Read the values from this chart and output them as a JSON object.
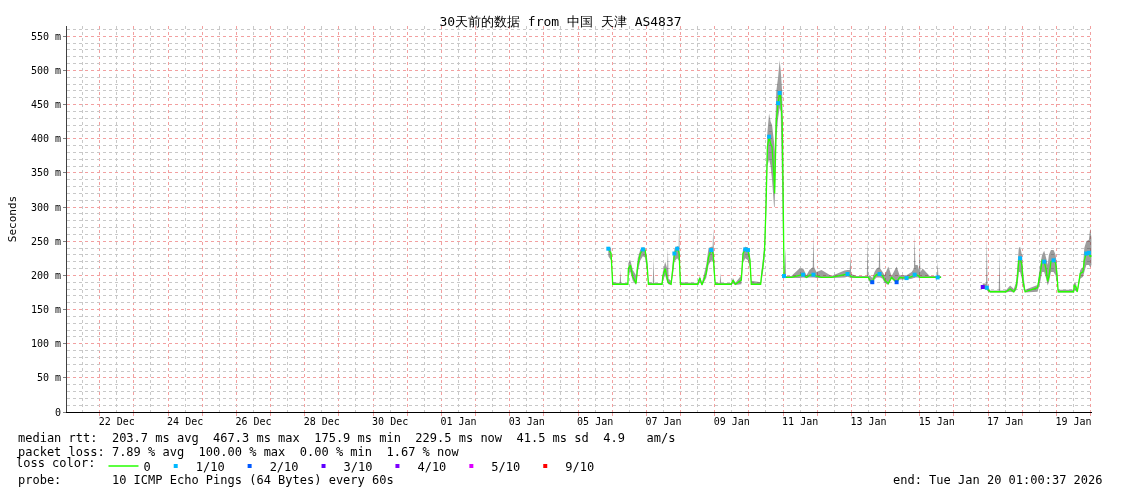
{
  "chart_data": {
    "type": "line",
    "title": "30天前的数据 from 中国 天津 AS4837",
    "ylabel": "Seconds",
    "legend_title": "loss color:",
    "legend": "bottom",
    "grid": true,
    "line_style": "solid",
    "xlim": [
      "2025-12-21T01:00",
      "2026-01-20T01:00"
    ],
    "ylim": [
      0,
      565
    ],
    "xticks": [
      {
        "value": "2025-12-21T12:00",
        "label": null
      },
      {
        "value": "2025-12-22T00:00",
        "label": null
      },
      {
        "value": "2025-12-22T12:00",
        "label": "22 Dec"
      },
      {
        "value": "2025-12-23T00:00",
        "label": null
      },
      {
        "value": "2025-12-23T12:00",
        "label": null
      },
      {
        "value": "2025-12-24T00:00",
        "label": null
      },
      {
        "value": "2025-12-24T12:00",
        "label": "24 Dec"
      },
      {
        "value": "2025-12-25T00:00",
        "label": null
      },
      {
        "value": "2025-12-25T12:00",
        "label": null
      },
      {
        "value": "2025-12-26T00:00",
        "label": null
      },
      {
        "value": "2025-12-26T12:00",
        "label": "26 Dec"
      },
      {
        "value": "2025-12-27T00:00",
        "label": null
      },
      {
        "value": "2025-12-27T12:00",
        "label": null
      },
      {
        "value": "2025-12-28T00:00",
        "label": null
      },
      {
        "value": "2025-12-28T12:00",
        "label": "28 Dec"
      },
      {
        "value": "2025-12-29T00:00",
        "label": null
      },
      {
        "value": "2025-12-29T12:00",
        "label": null
      },
      {
        "value": "2025-12-30T00:00",
        "label": null
      },
      {
        "value": "2025-12-30T12:00",
        "label": "30 Dec"
      },
      {
        "value": "2025-12-31T00:00",
        "label": null
      },
      {
        "value": "2025-12-31T12:00",
        "label": null
      },
      {
        "value": "2026-01-01T00:00",
        "label": null
      },
      {
        "value": "2026-01-01T12:00",
        "label": "01 Jan"
      },
      {
        "value": "2026-01-02T00:00",
        "label": null
      },
      {
        "value": "2026-01-02T12:00",
        "label": null
      },
      {
        "value": "2026-01-03T00:00",
        "label": null
      },
      {
        "value": "2026-01-03T12:00",
        "label": "03 Jan"
      },
      {
        "value": "2026-01-04T00:00",
        "label": null
      },
      {
        "value": "2026-01-04T12:00",
        "label": null
      },
      {
        "value": "2026-01-05T00:00",
        "label": null
      },
      {
        "value": "2026-01-05T12:00",
        "label": "05 Jan"
      },
      {
        "value": "2026-01-06T00:00",
        "label": null
      },
      {
        "value": "2026-01-06T12:00",
        "label": null
      },
      {
        "value": "2026-01-07T00:00",
        "label": null
      },
      {
        "value": "2026-01-07T12:00",
        "label": "07 Jan"
      },
      {
        "value": "2026-01-08T00:00",
        "label": null
      },
      {
        "value": "2026-01-08T12:00",
        "label": null
      },
      {
        "value": "2026-01-09T00:00",
        "label": null
      },
      {
        "value": "2026-01-09T12:00",
        "label": "09 Jan"
      },
      {
        "value": "2026-01-10T00:00",
        "label": null
      },
      {
        "value": "2026-01-10T12:00",
        "label": null
      },
      {
        "value": "2026-01-11T00:00",
        "label": null
      },
      {
        "value": "2026-01-11T12:00",
        "label": "11 Jan"
      },
      {
        "value": "2026-01-12T00:00",
        "label": null
      },
      {
        "value": "2026-01-12T12:00",
        "label": null
      },
      {
        "value": "2026-01-13T00:00",
        "label": null
      },
      {
        "value": "2026-01-13T12:00",
        "label": "13 Jan"
      },
      {
        "value": "2026-01-14T00:00",
        "label": null
      },
      {
        "value": "2026-01-14T12:00",
        "label": null
      },
      {
        "value": "2026-01-15T00:00",
        "label": null
      },
      {
        "value": "2026-01-15T12:00",
        "label": "15 Jan"
      },
      {
        "value": "2026-01-16T00:00",
        "label": null
      },
      {
        "value": "2026-01-16T12:00",
        "label": null
      },
      {
        "value": "2026-01-17T00:00",
        "label": null
      },
      {
        "value": "2026-01-17T12:00",
        "label": "17 Jan"
      },
      {
        "value": "2026-01-18T00:00",
        "label": null
      },
      {
        "value": "2026-01-18T12:00",
        "label": null
      },
      {
        "value": "2026-01-19T00:00",
        "label": null
      },
      {
        "value": "2026-01-19T12:00",
        "label": "19 Jan"
      },
      {
        "value": "2026-01-20T00:00",
        "label": null
      }
    ],
    "yticks": [
      0,
      {
        "value": 10,
        "label": null
      },
      {
        "value": 20,
        "label": null
      },
      {
        "value": 30,
        "label": null
      },
      {
        "value": 40,
        "label": null
      },
      {
        "value": 50,
        "label": "50 m"
      },
      {
        "value": 60,
        "label": null
      },
      {
        "value": 70,
        "label": null
      },
      {
        "value": 80,
        "label": null
      },
      {
        "value": 90,
        "label": null
      },
      {
        "value": 100,
        "label": "100 m"
      },
      {
        "value": 110,
        "label": null
      },
      {
        "value": 120,
        "label": null
      },
      {
        "value": 130,
        "label": null
      },
      {
        "value": 140,
        "label": null
      },
      {
        "value": 150,
        "label": "150 m"
      },
      {
        "value": 160,
        "label": null
      },
      {
        "value": 170,
        "label": null
      },
      {
        "value": 180,
        "label": null
      },
      {
        "value": 190,
        "label": null
      },
      {
        "value": 200,
        "label": "200 m"
      },
      {
        "value": 210,
        "label": null
      },
      {
        "value": 220,
        "label": null
      },
      {
        "value": 230,
        "label": null
      },
      {
        "value": 240,
        "label": null
      },
      {
        "value": 250,
        "label": "250 m"
      },
      {
        "value": 260,
        "label": null
      },
      {
        "value": 270,
        "label": null
      },
      {
        "value": 280,
        "label": null
      },
      {
        "value": 290,
        "label": null
      },
      {
        "value": 300,
        "label": "300 m"
      },
      {
        "value": 310,
        "label": null
      },
      {
        "value": 320,
        "label": null
      },
      {
        "value": 330,
        "label": null
      },
      {
        "value": 340,
        "label": null
      },
      {
        "value": 350,
        "label": "350 m"
      },
      {
        "value": 360,
        "label": null
      },
      {
        "value": 370,
        "label": null
      },
      {
        "value": 380,
        "label": null
      },
      {
        "value": 390,
        "label": null
      },
      {
        "value": 400,
        "label": "400 m"
      },
      {
        "value": 410,
        "label": null
      },
      {
        "value": 420,
        "label": null
      },
      {
        "value": 430,
        "label": null
      },
      {
        "value": 440,
        "label": null
      },
      {
        "value": 450,
        "label": "450 m"
      },
      {
        "value": 460,
        "label": null
      },
      {
        "value": 470,
        "label": null
      },
      {
        "value": 480,
        "label": null
      },
      {
        "value": 490,
        "label": null
      },
      {
        "value": 500,
        "label": "500 m"
      },
      {
        "value": 510,
        "label": null
      },
      {
        "value": 520,
        "label": null
      },
      {
        "value": 530,
        "label": null
      },
      {
        "value": 540,
        "label": null
      },
      {
        "value": 550,
        "label": "550 m"
      },
      {
        "value": 560,
        "label": null
      }
    ],
    "annotations": [
      "median rtt:  203.7 ms avg  467.3 ms max  175.9 ms min  229.5 ms now  41.5 ms sd  4.9   am/s",
      "packet loss: 7.89 % avg  100.00 % max  0.00 % min  1.67 % now",
      "probe:       10 ICMP Echo Pings (64 Bytes) every 60s",
      "end: Tue Jan 20 01:00:37 2026"
    ],
    "series": [
      {
        "name": "0",
        "color": "#26ff00",
        "x": [
          "2026-01-05T21:15",
          "2026-01-05T23:10",
          "2026-01-06T00:20",
          "2026-01-06T05:15",
          "2026-01-06T05:45",
          "2026-01-06T06:15",
          "2026-01-06T11:00",
          "2026-01-06T11:20",
          "2026-01-06T12:45",
          "2026-01-06T14:25",
          "2026-01-06T16:45",
          "2026-01-06T17:55",
          "2026-01-06T19:45",
          "2026-01-06T21:30",
          "2026-01-06T23:05",
          "2026-01-07T00:30",
          "2026-01-07T01:25",
          "2026-01-07T04:30",
          "2026-01-07T05:00",
          "2026-01-07T05:30",
          "2026-01-07T11:00",
          "2026-01-07T11:30",
          "2026-01-07T13:10",
          "2026-01-07T14:35",
          "2026-01-07T15:05",
          "2026-01-07T15:35",
          "2026-01-07T17:20",
          "2026-01-07T18:35",
          "2026-01-07T19:40",
          "2026-01-07T21:35",
          "2026-01-07T22:40",
          "2026-01-07T23:00",
          "2026-01-07T23:25",
          "2026-01-07T23:55",
          "2026-01-08T12:10",
          "2026-01-08T12:35",
          "2026-01-08T13:35",
          "2026-01-08T15:00",
          "2026-01-08T18:00",
          "2026-01-08T19:40",
          "2026-01-08T21:30",
          "2026-01-08T22:30",
          "2026-01-08T23:00",
          "2026-01-08T23:30",
          "2026-01-09T00:20",
          "2026-01-09T03:30",
          "2026-01-09T04:00",
          "2026-01-09T04:30",
          "2026-01-09T11:35",
          "2026-01-09T12:50",
          "2026-01-09T14:25",
          "2026-01-09T18:40",
          "2026-01-09T19:50",
          "2026-01-09T21:25",
          "2026-01-09T23:20",
          "2026-01-10T00:45",
          "2026-01-10T01:40",
          "2026-01-10T08:15",
          "2026-01-10T08:45",
          "2026-01-10T09:55",
          "2026-01-10T11:00",
          "2026-01-10T12:00",
          "2026-01-10T13:00",
          "2026-01-10T14:10",
          "2026-01-10T15:15",
          "2026-01-10T16:15",
          "2026-01-10T17:40",
          "2026-01-10T18:05",
          "2026-01-10T19:15",
          "2026-01-10T20:30",
          "2026-01-10T21:35",
          "2026-01-10T22:20",
          "2026-01-10T23:20",
          "2026-01-11T00:00",
          "2026-01-11T00:40",
          "2026-01-11T01:35",
          "2026-01-11T02:05",
          "2026-01-11T05:50",
          "2026-01-11T11:30",
          "2026-01-11T14:05",
          "2026-01-11T16:25",
          "2026-01-11T18:30",
          "2026-01-11T20:50",
          "2026-01-11T21:20",
          "2026-01-11T21:50",
          "2026-01-11T23:25",
          "2026-01-12T03:00",
          "2026-01-12T10:00",
          "2026-01-12T19:10",
          "2026-01-12T21:15",
          "2026-01-12T22:50",
          "2026-01-12T23:20",
          "2026-01-12T23:50",
          "2026-01-13T03:35",
          "2026-01-13T10:50",
          "2026-01-13T11:20",
          "2026-01-13T11:50",
          "2026-01-13T13:00",
          "2026-01-13T14:40",
          "2026-01-13T16:15",
          "2026-01-13T17:40",
          "2026-01-13T19:15",
          "2026-01-13T19:45",
          "2026-01-13T20:15",
          "2026-01-13T21:55",
          "2026-01-13T23:20",
          "2026-01-14T01:55",
          "2026-01-14T04:15",
          "2026-01-14T07:45",
          "2026-01-14T09:50",
          "2026-01-14T14:45",
          "2026-01-14T18:20",
          "2026-01-14T19:55",
          "2026-01-14T20:25",
          "2026-01-14T20:55",
          "2026-01-14T22:30",
          "2026-01-14T23:30",
          "2026-01-15T00:00",
          "2026-01-15T00:30",
          "2026-01-15T02:00",
          "2026-01-15T07:00",
          "2026-01-15T12:05",
          "2026-01-15T12:35",
          "2026-01-15T13:05",
          "2026-01-15T15:00",
          "2026-01-16T06:00",
          "2026-01-16T20:15",
          "2026-01-16T22:35",
          "2026-01-16T23:05",
          "2026-01-16T23:35",
          "2026-01-17T01:25",
          "2026-01-17T07:30",
          "2026-01-17T08:00",
          "2026-01-17T08:30",
          "2026-01-17T12:25",
          "2026-01-17T15:30",
          "2026-01-17T18:05",
          "2026-01-17T19:40",
          "2026-01-17T20:40",
          "2026-01-17T21:35",
          "2026-01-17T22:30",
          "2026-01-17T23:45",
          "2026-01-18T00:25",
          "2026-01-18T02:00",
          "2026-01-18T10:45",
          "2026-01-18T12:35",
          "2026-01-18T14:00",
          "2026-01-18T15:25",
          "2026-01-18T16:50",
          "2026-01-18T17:50",
          "2026-01-18T18:45",
          "2026-01-18T20:10",
          "2026-01-18T22:00",
          "2026-01-18T23:25",
          "2026-01-19T00:20",
          "2026-01-19T01:15",
          "2026-01-19T12:05",
          "2026-01-19T12:30",
          "2026-01-19T13:45",
          "2026-01-19T14:40",
          "2026-01-19T16:45",
          "2026-01-19T18:40",
          "2026-01-19T19:35",
          "2026-01-19T21:00",
          "2026-01-19T22:50",
          "2026-01-19T23:45",
          "2026-01-20T00:35"
        ],
        "values": [
          239,
          232,
          187,
          187,
          187,
          187,
          187,
          210,
          215,
          198,
          188,
          215,
          232,
          238,
          237,
          215,
          187,
          187,
          187,
          187,
          187,
          198,
          210,
          196,
          191,
          189,
          187,
          210,
          232,
          239,
          235,
          232,
          210,
          187,
          187,
          191,
          196,
          186,
          203,
          227,
          237,
          234,
          230,
          210,
          187,
          187,
          187,
          187,
          187,
          193,
          187,
          193,
          232,
          238,
          237,
          222,
          187,
          187,
          198,
          215,
          237,
          300,
          388,
          403,
          393,
          388,
          344,
          320,
          427,
          452,
          467,
          461,
          427,
          325,
          199,
          197,
          197,
          197,
          200,
          201,
          197,
          200,
          201,
          201,
          201,
          199,
          197,
          197,
          201,
          202,
          200,
          199,
          198,
          197,
          197,
          197,
          197,
          193,
          190,
          198,
          201,
          202,
          202,
          201,
          199,
          193,
          188,
          197,
          190,
          197,
          196,
          198,
          200,
          201,
          201,
          200,
          199,
          197,
          197,
          197,
          197,
          197,
          197,
          197,
          197,
          null,
          183,
          183,
          182,
          180,
          176,
          176,
          176,
          176,
          176,
          180,
          176,
          182,
          198,
          222,
          225,
          215,
          193,
          176,
          182,
          203,
          222,
          220,
          208,
          191,
          198,
          220,
          222,
          218,
          203,
          176,
          176,
          186,
          183,
          176,
          203,
          205,
          222,
          232,
          233,
          227,
          229
        ],
        "lower": [
          228,
          222,
          186,
          186,
          186,
          186,
          186,
          204,
          205,
          192,
          186,
          205,
          222,
          228,
          226,
          205,
          186,
          186,
          186,
          186,
          186,
          192,
          200,
          190,
          188,
          187,
          186,
          200,
          220,
          225,
          222,
          220,
          200,
          186,
          186,
          187,
          190,
          185,
          196,
          215,
          222,
          220,
          218,
          200,
          186,
          186,
          186,
          186,
          186,
          188,
          186,
          187,
          218,
          225,
          222,
          210,
          186,
          186,
          190,
          205,
          225,
          280,
          360,
          370,
          360,
          340,
          300,
          300,
          400,
          430,
          445,
          440,
          330,
          250,
          197,
          196,
          196,
          196,
          196,
          197,
          196,
          197,
          197,
          197,
          197,
          196,
          196,
          196,
          197,
          198,
          197,
          196,
          196,
          196,
          196,
          196,
          196,
          189,
          187,
          194,
          197,
          197,
          197,
          197,
          195,
          189,
          186,
          195,
          188,
          194,
          194,
          195,
          196,
          196,
          197,
          197,
          196,
          196,
          196,
          196,
          196,
          196,
          196,
          196,
          196,
          null,
          180,
          180,
          179,
          177,
          175,
          175,
          175,
          175,
          175,
          176,
          175,
          178,
          185,
          205,
          205,
          195,
          185,
          175,
          176,
          190,
          205,
          205,
          195,
          185,
          190,
          205,
          205,
          200,
          190,
          175,
          175,
          178,
          177,
          175,
          195,
          198,
          205,
          215,
          215,
          212,
          215
        ],
        "upper": [
          242,
          240,
          190,
          189,
          208,
          189,
          189,
          218,
          222,
          208,
          200,
          225,
          238,
          241,
          240,
          225,
          190,
          189,
          227,
          189,
          189,
          205,
          220,
          210,
          239,
          195,
          192,
          222,
          238,
          243,
          242,
          276,
          225,
          190,
          189,
          194,
          199,
          189,
          215,
          240,
          242,
          242,
          269,
          225,
          190,
          189,
          203,
          189,
          189,
          196,
          189,
          200,
          238,
          242,
          241,
          230,
          192,
          190,
          205,
          225,
          250,
          330,
          410,
          437,
          425,
          420,
          395,
          380,
          470,
          490,
          515,
          500,
          470,
          400,
          205,
          239,
          199,
          199,
          210,
          210,
          200,
          208,
          212,
          259,
          212,
          205,
          208,
          199,
          207,
          208,
          208,
          231,
          202,
          199,
          199,
          253,
          199,
          200,
          196,
          205,
          210,
          212,
          257,
          210,
          205,
          200,
          213,
          199,
          213,
          200,
          200,
          205,
          210,
          259,
          215,
          215,
          208,
          239,
          205,
          210,
          199,
          199,
          220,
          199,
          199,
          null,
          188,
          188,
          257,
          185,
          178,
          178,
          234,
          178,
          178,
          185,
          180,
          190,
          215,
          240,
          242,
          230,
          210,
          179,
          186,
          215,
          230,
          236,
          225,
          215,
          230,
          237,
          237,
          230,
          215,
          179,
          179,
          190,
          188,
          178,
          208,
          212,
          240,
          250,
          252,
          269,
          255
        ]
      },
      {
        "name": "1/10",
        "color": "#00b8ff",
        "type": "scatter",
        "marker": "square",
        "x": [
          "2026-01-05T21:15",
          "2026-01-06T21:30",
          "2026-01-07T19:40",
          "2026-01-07T21:35",
          "2026-01-08T21:30",
          "2026-01-09T21:25",
          "2026-01-09T23:20",
          "2026-01-10T14:10",
          "2026-01-10T20:30",
          "2026-01-10T21:35",
          "2026-01-11T00:40",
          "2026-01-11T14:05",
          "2026-01-11T21:20",
          "2026-01-12T21:15",
          "2026-01-13T19:45",
          "2026-01-14T14:45",
          "2026-01-14T20:25",
          "2026-01-15T12:35",
          "2026-01-16T23:05",
          "2026-01-17T22:30",
          "2026-01-18T15:25",
          "2026-01-18T22:00",
          "2026-01-19T21:00",
          "2026-01-19T22:50"
        ],
        "values": [
          239,
          238,
          232,
          239,
          237,
          238,
          237,
          403,
          452,
          467,
          199,
          201,
          201,
          202,
          202,
          196,
          201,
          197,
          182,
          225,
          220,
          222,
          232,
          233
        ]
      },
      {
        "name": "2/10",
        "color": "#0059ff",
        "type": "scatter",
        "marker": "square",
        "x": [
          "2026-01-13T14:40",
          "2026-01-14T07:45"
        ],
        "values": [
          190,
          190
        ]
      },
      {
        "name": "3/10",
        "color": "#5e00ff",
        "type": "scatter",
        "marker": "square",
        "x": [
          "2026-01-16T20:15"
        ],
        "values": [
          183
        ]
      },
      {
        "name": "4/10",
        "color": "#7e00ff",
        "type": "scatter",
        "marker": "square"
      },
      {
        "name": "5/10",
        "color": "#dd00ff",
        "type": "scatter",
        "marker": "square"
      },
      {
        "name": "9/10",
        "color": "#ff0000",
        "type": "scatter",
        "marker": "square"
      }
    ]
  }
}
